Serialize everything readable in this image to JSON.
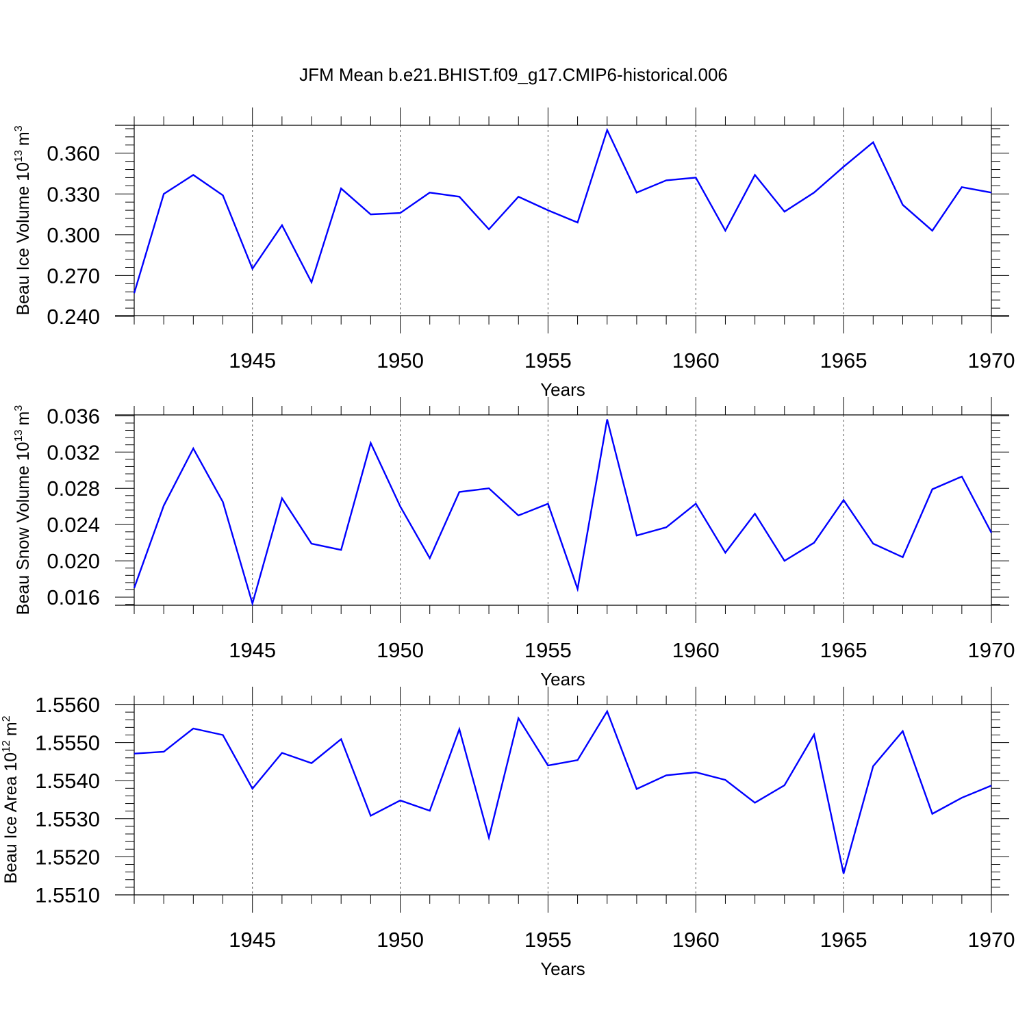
{
  "title": "JFM Mean b.e21.BHIST.f09_g17.CMIP6-historical.006",
  "line_color": "#0000ff",
  "chart_data": [
    {
      "type": "line",
      "ylabel_main": "Beau Ice Volume 10",
      "ylabel_exp": "13",
      "ylabel_unit": "m",
      "ylabel_unit_exp": "3",
      "xlabel": "Years",
      "xlim": [
        1941,
        1970
      ],
      "ylim": [
        0.2405,
        0.3805
      ],
      "ytick_values": [
        0.24,
        0.27,
        0.3,
        0.33,
        0.36
      ],
      "ytick_labels": [
        "0.240",
        "0.270",
        "0.300",
        "0.330",
        "0.360"
      ],
      "xtick_values": [
        1945,
        1950,
        1955,
        1960,
        1965,
        1970
      ],
      "xtick_labels": [
        "1945",
        "1950",
        "1955",
        "1960",
        "1965",
        "1970"
      ],
      "x": [
        1941,
        1942,
        1943,
        1944,
        1945,
        1946,
        1947,
        1948,
        1949,
        1950,
        1951,
        1952,
        1953,
        1954,
        1955,
        1956,
        1957,
        1958,
        1959,
        1960,
        1961,
        1962,
        1963,
        1964,
        1965,
        1966,
        1967,
        1968,
        1969,
        1970
      ],
      "values": [
        0.257,
        0.33,
        0.344,
        0.329,
        0.275,
        0.307,
        0.265,
        0.334,
        0.315,
        0.316,
        0.331,
        0.328,
        0.304,
        0.328,
        0.318,
        0.309,
        0.377,
        0.331,
        0.34,
        0.342,
        0.303,
        0.344,
        0.317,
        0.331,
        0.35,
        0.368,
        0.322,
        0.303,
        0.335,
        0.331
      ]
    },
    {
      "type": "line",
      "ylabel_main": "Beau Snow Volume 10",
      "ylabel_exp": "13",
      "ylabel_unit": "m",
      "ylabel_unit_exp": "3",
      "xlabel": "Years",
      "xlim": [
        1941,
        1970
      ],
      "ylim": [
        0.0151,
        0.0361
      ],
      "ytick_values": [
        0.016,
        0.02,
        0.024,
        0.028,
        0.032,
        0.036
      ],
      "ytick_labels": [
        "0.016",
        "0.020",
        "0.024",
        "0.028",
        "0.032",
        "0.036"
      ],
      "xtick_values": [
        1945,
        1950,
        1955,
        1960,
        1965,
        1970
      ],
      "xtick_labels": [
        "1945",
        "1950",
        "1955",
        "1960",
        "1965",
        "1970"
      ],
      "x": [
        1941,
        1942,
        1943,
        1944,
        1945,
        1946,
        1947,
        1948,
        1949,
        1950,
        1951,
        1952,
        1953,
        1954,
        1955,
        1956,
        1957,
        1958,
        1959,
        1960,
        1961,
        1962,
        1963,
        1964,
        1965,
        1966,
        1967,
        1968,
        1969,
        1970
      ],
      "values": [
        0.017,
        0.0261,
        0.0324,
        0.0265,
        0.0153,
        0.0269,
        0.0219,
        0.0212,
        0.033,
        0.026,
        0.0203,
        0.0276,
        0.028,
        0.025,
        0.0263,
        0.0169,
        0.0356,
        0.0228,
        0.0237,
        0.0263,
        0.0209,
        0.0252,
        0.02,
        0.022,
        0.0267,
        0.0219,
        0.0204,
        0.0279,
        0.0293,
        0.0231
      ]
    },
    {
      "type": "line",
      "ylabel_main": "Beau Ice Area 10",
      "ylabel_exp": "12",
      "ylabel_unit": "m",
      "ylabel_unit_exp": "2",
      "xlabel": "Years",
      "xlim": [
        1941,
        1970
      ],
      "ylim": [
        1.551,
        1.556
      ],
      "ytick_values": [
        1.551,
        1.552,
        1.553,
        1.554,
        1.555,
        1.556
      ],
      "ytick_labels": [
        "1.5510",
        "1.5520",
        "1.5530",
        "1.5540",
        "1.5550",
        "1.5560"
      ],
      "xtick_values": [
        1945,
        1950,
        1955,
        1960,
        1965,
        1970
      ],
      "xtick_labels": [
        "1945",
        "1950",
        "1955",
        "1960",
        "1965",
        "1970"
      ],
      "x": [
        1941,
        1942,
        1943,
        1944,
        1945,
        1946,
        1947,
        1948,
        1949,
        1950,
        1951,
        1952,
        1953,
        1954,
        1955,
        1956,
        1957,
        1958,
        1959,
        1960,
        1961,
        1962,
        1963,
        1964,
        1965,
        1966,
        1967,
        1968,
        1969,
        1970
      ],
      "values": [
        1.55471,
        1.55476,
        1.55537,
        1.5552,
        1.55379,
        1.55473,
        1.55446,
        1.55509,
        1.55308,
        1.55348,
        1.55321,
        1.55535,
        1.5525,
        1.55564,
        1.5544,
        1.55454,
        1.55582,
        1.55378,
        1.55414,
        1.55422,
        1.55402,
        1.55342,
        1.55388,
        1.55521,
        1.55156,
        1.55438,
        1.5553,
        1.55313,
        1.55355,
        1.55387
      ]
    }
  ]
}
